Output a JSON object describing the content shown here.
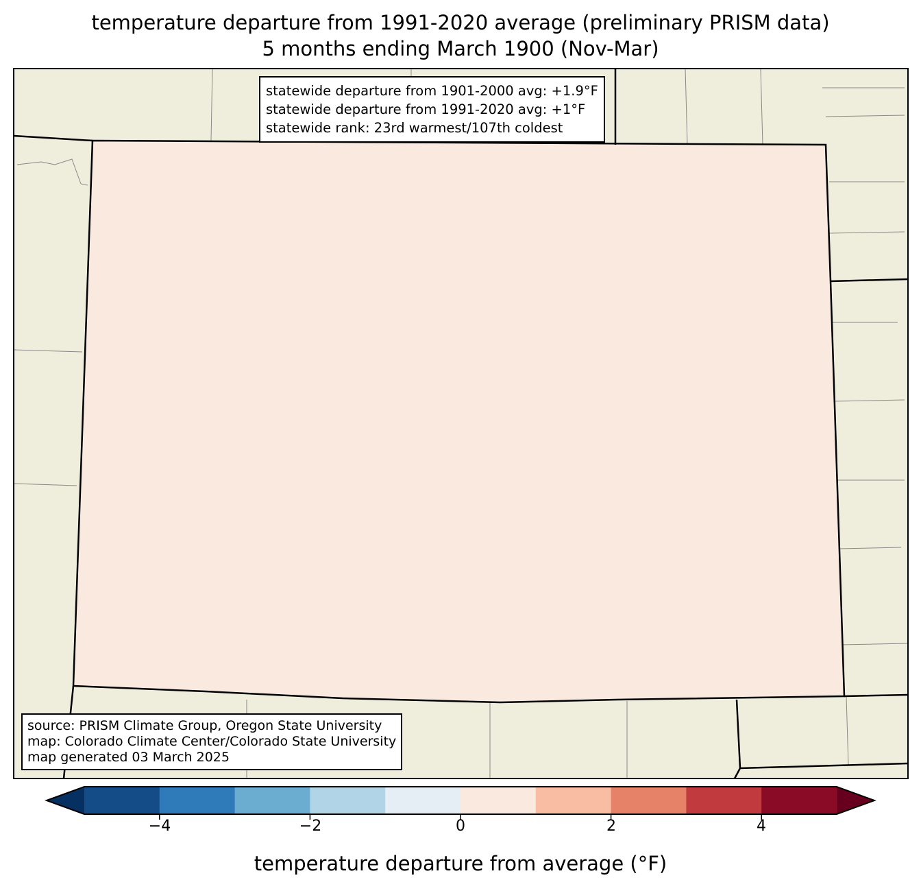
{
  "title": {
    "line1": "temperature departure from 1991-2020 average (preliminary PRISM data)",
    "line2": "5 months ending March 1900 (Nov-Mar)"
  },
  "stats": {
    "line1": "statewide departure from 1901-2000 avg: +1.9°F",
    "line2": "statewide departure from 1991-2020 avg: +1°F",
    "line3": "statewide rank: 23rd warmest/107th coldest"
  },
  "credits": {
    "line1": "source: PRISM Climate Group, Oregon State University",
    "line2": "map: Colorado Climate Center/Colorado State University",
    "line3": "map generated 03 March 2025"
  },
  "colorbar": {
    "label": "temperature departure from average (°F)",
    "bounds": [
      -5,
      -4,
      -3,
      -2,
      -1,
      0,
      1,
      2,
      3,
      4,
      5
    ],
    "colors": [
      "#144c87",
      "#2f7ab9",
      "#6bacd1",
      "#b1d5e7",
      "#e4eef4",
      "#f9e9df",
      "#f8bda2",
      "#e58268",
      "#c13a3e",
      "#8a0b25"
    ],
    "extend_low_color": "#053061",
    "extend_high_color": "#67001f",
    "ticks": [
      "−4",
      "−2",
      "0",
      "2",
      "4"
    ]
  },
  "colors": {
    "land": "#efeedc"
  }
}
